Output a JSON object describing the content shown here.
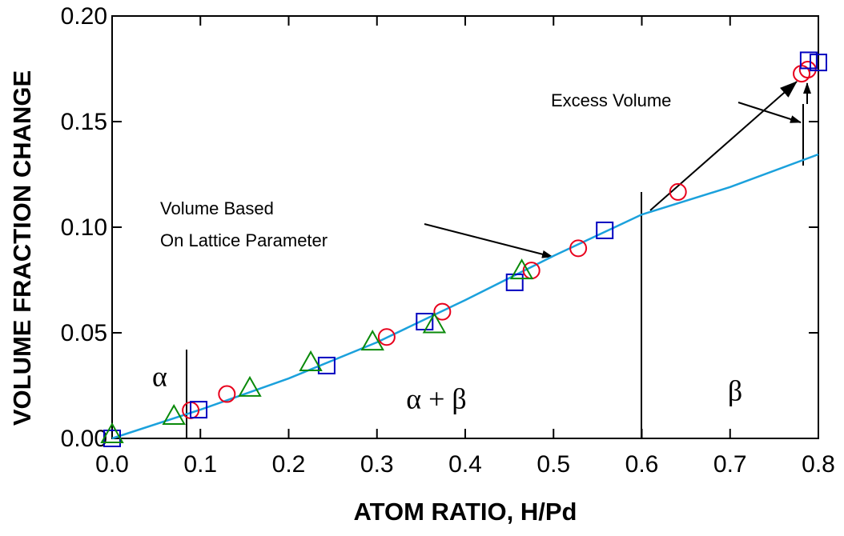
{
  "chart_data": {
    "type": "scatter",
    "xlabel": "ATOM RATIO, H/Pd",
    "ylabel": "VOLUME FRACTION CHANGE",
    "xlim": [
      0,
      0.8
    ],
    "ylim": [
      0,
      0.2
    ],
    "xticks": [
      {
        "value": 0,
        "label": "0.0"
      },
      0.1,
      0.2,
      0.3,
      0.4,
      0.5,
      0.6,
      0.7,
      0.8
    ],
    "yticks": [
      {
        "value": 0,
        "label": "0.00"
      },
      0.05,
      {
        "value": 0.1,
        "label": "0.10"
      },
      0.15,
      {
        "value": 0.2,
        "label": "0.20"
      }
    ],
    "annotations": [
      "α",
      "α + β",
      "β",
      "Volume Based",
      "On Lattice Parameter",
      "Excess Volume"
    ],
    "series": [
      {
        "type": "line",
        "color": "#1ba1dc",
        "x": [
          0,
          0.1,
          0.2,
          0.3,
          0.4,
          0.5,
          0.6,
          0.7,
          0.8
        ],
        "values": [
          0,
          0.0136,
          0.0284,
          0.0455,
          0.0655,
          0.0864,
          0.106,
          0.119,
          0.1345
        ]
      },
      {
        "type": "scatter",
        "marker": "circle",
        "color": "#e8001c",
        "x": [
          0.089,
          0.13,
          0.311,
          0.374,
          0.475,
          0.528,
          0.641,
          0.781,
          0.788
        ],
        "values": [
          0.0133,
          0.021,
          0.048,
          0.06,
          0.0795,
          0.09,
          0.1167,
          0.1727,
          0.1746
        ]
      },
      {
        "type": "scatter",
        "marker": "square",
        "color": "#0000c0",
        "x": [
          0,
          0.098,
          0.243,
          0.354,
          0.456,
          0.558,
          0.789,
          0.8
        ],
        "values": [
          0,
          0.0136,
          0.0345,
          0.0553,
          0.0739,
          0.0985,
          0.179,
          0.178
        ]
      },
      {
        "type": "scatter",
        "marker": "triangle",
        "color": "#0a8a0a",
        "x": [
          0,
          0.07,
          0.156,
          0.225,
          0.295,
          0.365,
          0.464
        ],
        "values": [
          0.0019,
          0.0106,
          0.0239,
          0.036,
          0.0458,
          0.054,
          0.0795
        ]
      }
    ]
  }
}
